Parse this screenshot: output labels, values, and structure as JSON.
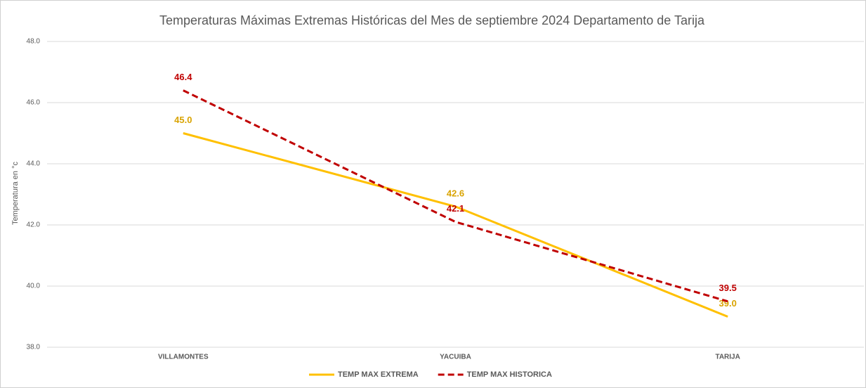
{
  "chart_data": {
    "type": "line",
    "title": "Temperaturas Máximas Extremas Históricas del Mes de septiembre 2024 Departamento  de Tarija",
    "y_label": "Temperatura en °c",
    "categories": [
      "VILLAMONTES",
      "YACUIBA",
      "TARIJA"
    ],
    "series": [
      {
        "name": "TEMP MAX EXTREMA",
        "color": "#FFC000",
        "label_color": "#D9A300",
        "dash": false,
        "values": [
          45.0,
          42.6,
          39.0
        ],
        "value_labels": [
          "45.0",
          "42.6",
          "39.0"
        ]
      },
      {
        "name": "TEMP MAX HISTORICA",
        "color": "#C00000",
        "label_color": "#C00000",
        "dash": true,
        "values": [
          46.4,
          42.1,
          39.5
        ],
        "value_labels": [
          "46.4",
          "42.1",
          "39.5"
        ]
      }
    ],
    "ylim": [
      38,
      48
    ],
    "yticks": [
      {
        "value": 38,
        "label": "38.0"
      },
      {
        "value": 40,
        "label": "40.0"
      },
      {
        "value": 42,
        "label": "42.0"
      },
      {
        "value": 44,
        "label": "44.0"
      },
      {
        "value": 46,
        "label": "46.0"
      },
      {
        "value": 48,
        "label": "48.0"
      }
    ],
    "grid": true,
    "legend": "bottom"
  }
}
